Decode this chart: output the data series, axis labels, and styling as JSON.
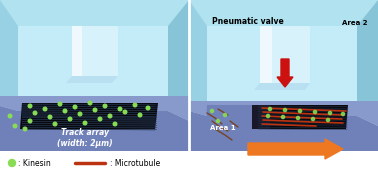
{
  "fig_width": 3.78,
  "fig_height": 1.71,
  "bg_color": "white",
  "sky_color": "#b8e8f0",
  "wall_color": "#c8eef8",
  "wall_dark": "#a0d8e8",
  "wall_side": "#90c8dc",
  "platform_color": "#8899cc",
  "platform_side": "#7080bb",
  "platform_dark": "#6070aa",
  "channel_color": "#090910",
  "track_color": "#22334a",
  "kinesin_color": "#88dd55",
  "mt_color": "#bb3311",
  "mt_color2": "#cc5522",
  "arrow_red": "#cc1111",
  "arrow_orange": "#ee7722",
  "label_track": "Track array\n(width: 2μm)",
  "label_pneumatic": "Pneumatic valve",
  "label_area1": "Area 1",
  "label_area2": "Area 2",
  "legend_kinesin": ": Kinesin",
  "legend_mt": ": Microtubule"
}
